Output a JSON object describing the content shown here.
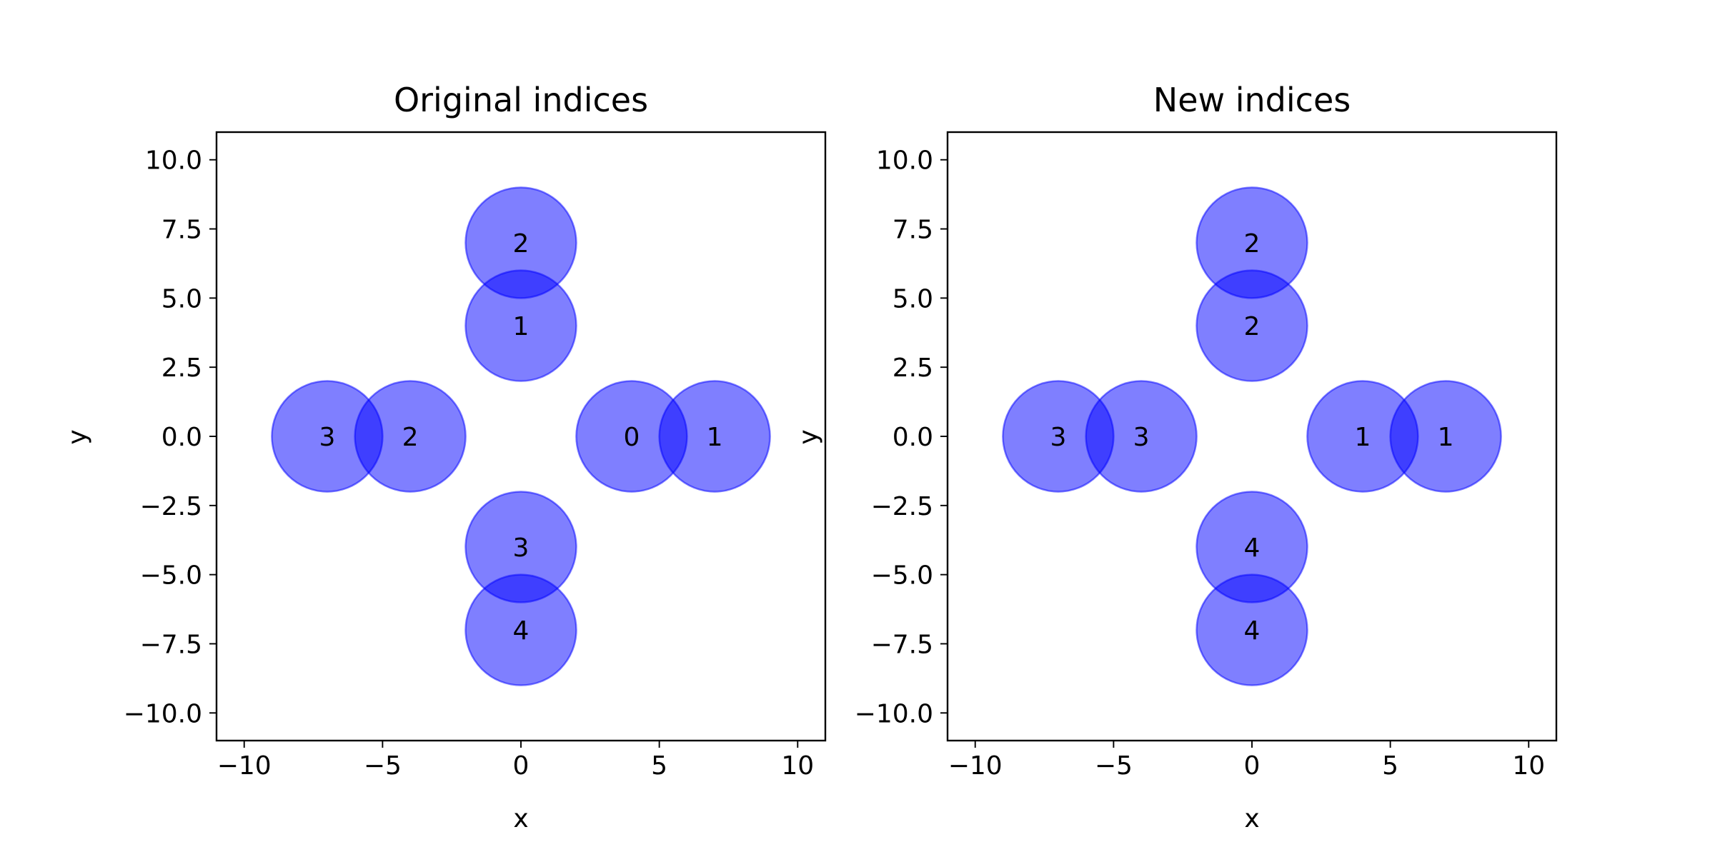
{
  "chart_data": [
    {
      "type": "scatter",
      "title": "Original indices",
      "xlabel": "x",
      "ylabel": "y",
      "xlim": [
        -11,
        11
      ],
      "ylim": [
        -11,
        11
      ],
      "xticks": [
        -10,
        -5,
        0,
        5,
        10
      ],
      "xtick_labels": [
        "−10",
        "−5",
        "0",
        "5",
        "10"
      ],
      "yticks": [
        10,
        7.5,
        5,
        2.5,
        0,
        -2.5,
        -5,
        -7.5,
        -10
      ],
      "ytick_labels": [
        "10.0",
        "7.5",
        "5.0",
        "2.5",
        "0.0",
        "−2.5",
        "−5.0",
        "−7.5",
        "−10.0"
      ],
      "grid": false,
      "circle_radius": 2,
      "face_color": "#0000ff",
      "face_alpha": 0.5,
      "points": [
        {
          "x": 4,
          "y": 0,
          "label": "0"
        },
        {
          "x": 7,
          "y": 0,
          "label": "1"
        },
        {
          "x": 0,
          "y": 4,
          "label": "1"
        },
        {
          "x": 0,
          "y": 7,
          "label": "2"
        },
        {
          "x": -4,
          "y": 0,
          "label": "2"
        },
        {
          "x": -7,
          "y": 0,
          "label": "3"
        },
        {
          "x": 0,
          "y": -4,
          "label": "3"
        },
        {
          "x": 0,
          "y": -7,
          "label": "4"
        }
      ]
    },
    {
      "type": "scatter",
      "title": "New indices",
      "xlabel": "x",
      "ylabel": "y",
      "xlim": [
        -11,
        11
      ],
      "ylim": [
        -11,
        11
      ],
      "xticks": [
        -10,
        -5,
        0,
        5,
        10
      ],
      "xtick_labels": [
        "−10",
        "−5",
        "0",
        "5",
        "10"
      ],
      "yticks": [
        10,
        7.5,
        5,
        2.5,
        0,
        -2.5,
        -5,
        -7.5,
        -10
      ],
      "ytick_labels": [
        "10.0",
        "7.5",
        "5.0",
        "2.5",
        "0.0",
        "−2.5",
        "−5.0",
        "−7.5",
        "−10.0"
      ],
      "grid": false,
      "circle_radius": 2,
      "face_color": "#0000ff",
      "face_alpha": 0.5,
      "points": [
        {
          "x": 4,
          "y": 0,
          "label": "1"
        },
        {
          "x": 7,
          "y": 0,
          "label": "1"
        },
        {
          "x": 0,
          "y": 4,
          "label": "2"
        },
        {
          "x": 0,
          "y": 7,
          "label": "2"
        },
        {
          "x": -4,
          "y": 0,
          "label": "3"
        },
        {
          "x": -7,
          "y": 0,
          "label": "3"
        },
        {
          "x": 0,
          "y": -4,
          "label": "4"
        },
        {
          "x": 0,
          "y": -7,
          "label": "4"
        }
      ]
    }
  ]
}
